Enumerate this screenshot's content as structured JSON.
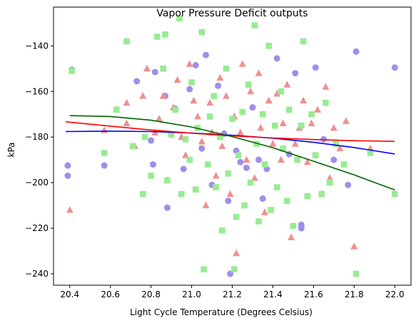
{
  "chart_data": {
    "type": "scatter",
    "title": "Vapor Pressure Deficit outputs",
    "xlabel": "Light Cycle Temperature (Degrees Celsius)",
    "ylabel": "kPa",
    "xlim": [
      20.32,
      22.08
    ],
    "ylim": [
      -245,
      -123
    ],
    "xticks": [
      "20.4",
      "20.6",
      "20.8",
      "21.0",
      "21.2",
      "21.4",
      "21.6",
      "21.8",
      "22.0"
    ],
    "yticks": [
      "−140",
      "−160",
      "−180",
      "−200",
      "−220",
      "−240"
    ],
    "grid": false,
    "legend": "none",
    "series": [
      {
        "marker": "circle",
        "color": "#9f8fe8",
        "points": [
          [
            20.39,
            -192.5
          ],
          [
            20.39,
            -197
          ],
          [
            20.41,
            -150.5
          ],
          [
            20.57,
            -192.5
          ],
          [
            20.57,
            -187
          ],
          [
            20.68,
            -138
          ],
          [
            20.73,
            -155.5
          ],
          [
            20.8,
            -181.5
          ],
          [
            20.81,
            -192
          ],
          [
            20.82,
            -151.5
          ],
          [
            20.87,
            -162
          ],
          [
            20.88,
            -211
          ],
          [
            20.92,
            -167.5
          ],
          [
            20.96,
            -194
          ],
          [
            20.99,
            -159
          ],
          [
            21.02,
            -148.5
          ],
          [
            21.05,
            -185
          ],
          [
            21.07,
            -144
          ],
          [
            21.1,
            -201
          ],
          [
            21.13,
            -157.5
          ],
          [
            21.16,
            -178.5
          ],
          [
            21.18,
            -208
          ],
          [
            21.19,
            -240
          ],
          [
            21.22,
            -186
          ],
          [
            21.24,
            -191
          ],
          [
            21.27,
            -193.5
          ],
          [
            21.3,
            -167
          ],
          [
            21.33,
            -190
          ],
          [
            21.35,
            -207
          ],
          [
            21.37,
            -194
          ],
          [
            21.42,
            -145.5
          ],
          [
            21.48,
            -187.5
          ],
          [
            21.51,
            -152
          ],
          [
            21.54,
            -220
          ],
          [
            21.54,
            -218.5
          ],
          [
            21.61,
            -149.5
          ],
          [
            21.65,
            -181
          ],
          [
            21.7,
            -190
          ],
          [
            21.77,
            -201
          ],
          [
            21.81,
            -142.5
          ],
          [
            22.0,
            -149.5
          ]
        ]
      },
      {
        "marker": "triangle",
        "color": "#f09090",
        "points": [
          [
            20.4,
            -212
          ],
          [
            20.57,
            -177
          ],
          [
            20.63,
            -168
          ],
          [
            20.68,
            -165
          ],
          [
            20.68,
            -174
          ],
          [
            20.72,
            -184
          ],
          [
            20.76,
            -162
          ],
          [
            20.78,
            -150
          ],
          [
            20.82,
            -178
          ],
          [
            20.84,
            -172
          ],
          [
            20.86,
            -162
          ],
          [
            20.88,
            -199
          ],
          [
            20.91,
            -167
          ],
          [
            20.93,
            -155
          ],
          [
            20.95,
            -180
          ],
          [
            20.97,
            -188
          ],
          [
            20.99,
            -148
          ],
          [
            21.01,
            -164
          ],
          [
            21.03,
            -171
          ],
          [
            21.05,
            -182
          ],
          [
            21.07,
            -210
          ],
          [
            21.09,
            -165
          ],
          [
            21.1,
            -178
          ],
          [
            21.12,
            -197
          ],
          [
            21.14,
            -154
          ],
          [
            21.15,
            -184
          ],
          [
            21.17,
            -162
          ],
          [
            21.19,
            -205
          ],
          [
            21.21,
            -171
          ],
          [
            21.22,
            -231
          ],
          [
            21.24,
            -178
          ],
          [
            21.25,
            -148
          ],
          [
            21.27,
            -190
          ],
          [
            21.29,
            -160
          ],
          [
            21.31,
            -198
          ],
          [
            21.33,
            -152
          ],
          [
            21.34,
            -176
          ],
          [
            21.36,
            -213
          ],
          [
            21.38,
            -164
          ],
          [
            21.4,
            -183
          ],
          [
            21.42,
            -161
          ],
          [
            21.44,
            -190
          ],
          [
            21.45,
            -174
          ],
          [
            21.47,
            -157
          ],
          [
            21.49,
            -224
          ],
          [
            21.51,
            -183
          ],
          [
            21.53,
            -176
          ],
          [
            21.55,
            -164
          ],
          [
            21.57,
            -191
          ],
          [
            21.59,
            -174
          ],
          [
            21.62,
            -168
          ],
          [
            21.64,
            -205
          ],
          [
            21.66,
            -158
          ],
          [
            21.68,
            -198
          ],
          [
            21.7,
            -176
          ],
          [
            21.73,
            -185
          ],
          [
            21.76,
            -173
          ],
          [
            21.8,
            -228
          ],
          [
            21.88,
            -185
          ],
          [
            22.0,
            -205
          ]
        ]
      },
      {
        "marker": "square",
        "color": "#98ec92",
        "points": [
          [
            20.41,
            -151
          ],
          [
            20.57,
            -187
          ],
          [
            20.63,
            -168
          ],
          [
            20.68,
            -138
          ],
          [
            20.71,
            -184
          ],
          [
            20.76,
            -205
          ],
          [
            20.77,
            -180
          ],
          [
            20.8,
            -197
          ],
          [
            20.83,
            -136
          ],
          [
            20.86,
            -150
          ],
          [
            20.87,
            -135
          ],
          [
            20.88,
            -199
          ],
          [
            20.9,
            -179
          ],
          [
            20.92,
            -168
          ],
          [
            20.94,
            -128
          ],
          [
            20.95,
            -205
          ],
          [
            20.97,
            -181
          ],
          [
            20.99,
            -190
          ],
          [
            21.0,
            -156
          ],
          [
            21.02,
            -203
          ],
          [
            21.03,
            -176
          ],
          [
            21.05,
            -134
          ],
          [
            21.06,
            -238
          ],
          [
            21.08,
            -192
          ],
          [
            21.09,
            -171
          ],
          [
            21.11,
            -162
          ],
          [
            21.12,
            -202
          ],
          [
            21.14,
            -180
          ],
          [
            21.15,
            -221
          ],
          [
            21.17,
            -150
          ],
          [
            21.18,
            -196
          ],
          [
            21.2,
            -172
          ],
          [
            21.21,
            -238
          ],
          [
            21.22,
            -215
          ],
          [
            21.23,
            -188
          ],
          [
            21.25,
            -169
          ],
          [
            21.26,
            -210
          ],
          [
            21.28,
            -157
          ],
          [
            21.29,
            -200
          ],
          [
            21.31,
            -131
          ],
          [
            21.32,
            -183
          ],
          [
            21.33,
            -217
          ],
          [
            21.35,
            -170
          ],
          [
            21.36,
            -192
          ],
          [
            21.38,
            -140
          ],
          [
            21.39,
            -212
          ],
          [
            21.41,
            -175
          ],
          [
            21.42,
            -202
          ],
          [
            21.44,
            -160
          ],
          [
            21.45,
            -185
          ],
          [
            21.47,
            -208
          ],
          [
            21.48,
            -168
          ],
          [
            21.5,
            -219
          ],
          [
            21.52,
            -190
          ],
          [
            21.54,
            -175
          ],
          [
            21.55,
            -138
          ],
          [
            21.57,
            -206
          ],
          [
            21.59,
            -170
          ],
          [
            21.61,
            -188
          ],
          [
            21.64,
            -205
          ],
          [
            21.66,
            -165
          ],
          [
            21.68,
            -200
          ],
          [
            21.71,
            -183
          ],
          [
            21.75,
            -192
          ],
          [
            21.81,
            -240
          ],
          [
            21.88,
            -187
          ],
          [
            22.0,
            -205
          ]
        ]
      }
    ],
    "lines": [
      {
        "color": "#0000ff",
        "x": [
          20.38,
          20.6,
          20.8,
          21.0,
          21.2,
          21.4,
          21.6,
          21.8,
          22.0
        ],
        "y": [
          -177.6,
          -177.4,
          -177.6,
          -178.2,
          -179.2,
          -180.5,
          -182.3,
          -184.6,
          -187.4
        ]
      },
      {
        "color": "#ff0000",
        "x": [
          20.38,
          20.6,
          20.8,
          21.0,
          21.2,
          21.4,
          21.6,
          21.8,
          22.0
        ],
        "y": [
          -173.3,
          -175.2,
          -176.9,
          -178.3,
          -179.5,
          -180.4,
          -181.1,
          -181.6,
          -181.9
        ]
      },
      {
        "color": "#006400",
        "x": [
          20.4,
          20.6,
          20.8,
          21.0,
          21.2,
          21.4,
          21.6,
          21.8,
          22.0
        ],
        "y": [
          -170.6,
          -171.0,
          -172.6,
          -175.6,
          -179.8,
          -184.7,
          -190.6,
          -196.6,
          -203.2
        ]
      }
    ]
  }
}
